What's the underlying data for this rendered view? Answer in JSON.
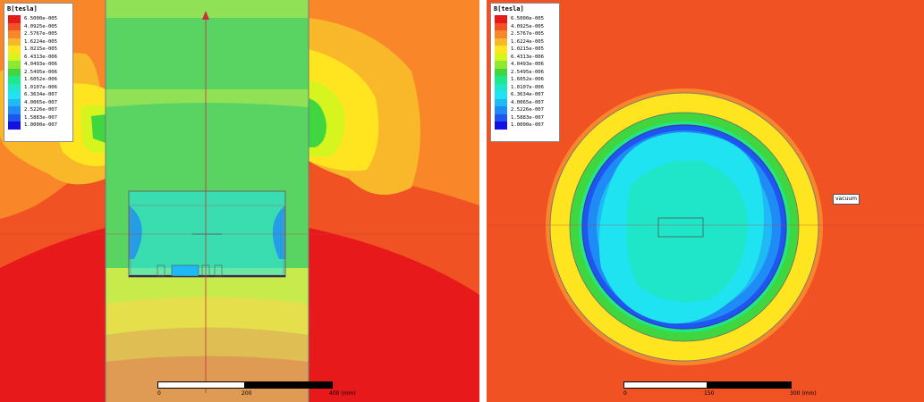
{
  "legend": {
    "title": "B[tesla]",
    "entries": [
      {
        "value": "6.5000e-005",
        "color": "#e8191b"
      },
      {
        "value": "4.0925e-005",
        "color": "#f15224"
      },
      {
        "value": "2.5767e-005",
        "color": "#f9872a"
      },
      {
        "value": "1.6224e-005",
        "color": "#f9b72a"
      },
      {
        "value": "1.0215e-005",
        "color": "#ffe51f"
      },
      {
        "value": "6.4313e-006",
        "color": "#d6f51f"
      },
      {
        "value": "4.0493e-006",
        "color": "#8ce830"
      },
      {
        "value": "2.5495e-006",
        "color": "#3fd63f"
      },
      {
        "value": "1.6052e-006",
        "color": "#1fe888"
      },
      {
        "value": "1.0107e-006",
        "color": "#1fe5c9"
      },
      {
        "value": "6.3634e-007",
        "color": "#1fe3f0"
      },
      {
        "value": "4.0065e-007",
        "color": "#1fb9f5"
      },
      {
        "value": "2.5226e-007",
        "color": "#1f8cf5"
      },
      {
        "value": "1.5883e-007",
        "color": "#1f55f0"
      },
      {
        "value": "1.0000e-007",
        "color": "#1212e3"
      }
    ]
  },
  "left_view": {
    "scale": {
      "ticks": [
        "0",
        "200",
        "400 (mm)"
      ]
    }
  },
  "right_view": {
    "scale": {
      "ticks": [
        "0",
        "150",
        "300 (mm)"
      ]
    },
    "region_label": "vacuum"
  }
}
